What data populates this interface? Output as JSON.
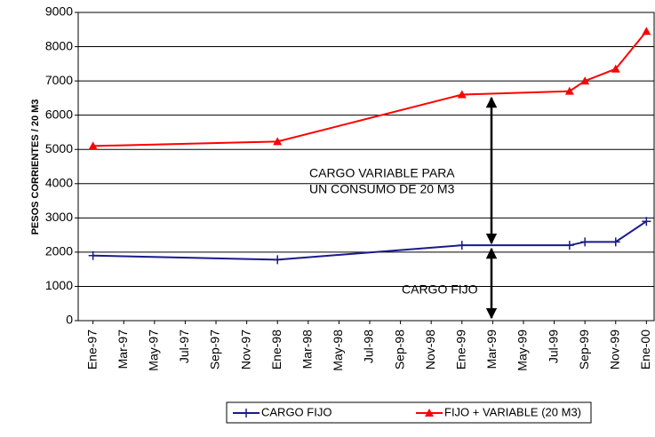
{
  "chart_data": {
    "type": "line",
    "y_label": "PESOS CORRIENTES / 20 M3",
    "categories": [
      "Ene-97",
      null,
      "Mar-97",
      null,
      "May-97",
      null,
      "Jul-97",
      null,
      "Sep-97",
      null,
      "Nov-97",
      null,
      "Ene-98",
      null,
      "Mar-98",
      null,
      "May-98",
      null,
      "Jul-98",
      null,
      "Sep-98",
      null,
      "Nov-98",
      null,
      "Ene-99",
      null,
      "Mar-99",
      null,
      "May-99",
      null,
      "Jul-99",
      null,
      "Sep-99",
      null,
      "Nov-99",
      null,
      "Ene-00"
    ],
    "series": [
      {
        "name": "CARGO FIJO",
        "color": "#1a1a8c",
        "marker": "plus",
        "values": [
          1900,
          null,
          null,
          null,
          null,
          null,
          null,
          null,
          null,
          null,
          null,
          null,
          1780,
          null,
          null,
          null,
          null,
          null,
          null,
          null,
          null,
          null,
          null,
          null,
          2200,
          null,
          null,
          null,
          null,
          null,
          null,
          2200,
          2300,
          null,
          2300,
          null,
          2900
        ]
      },
      {
        "name": "FIJO + VARIABLE (20 M3)",
        "color": "#ff0000",
        "marker": "triangle",
        "values": [
          5100,
          null,
          null,
          null,
          null,
          null,
          null,
          null,
          null,
          null,
          null,
          null,
          5230,
          null,
          null,
          null,
          null,
          null,
          null,
          null,
          null,
          null,
          null,
          null,
          6600,
          null,
          null,
          null,
          null,
          null,
          null,
          6700,
          7000,
          null,
          7350,
          null,
          8450
        ]
      }
    ],
    "span_gaps": true,
    "ylim": [
      0,
      9000
    ],
    "yticks": [
      0,
      1000,
      2000,
      3000,
      4000,
      5000,
      6000,
      7000,
      8000,
      9000
    ],
    "grid": true,
    "legend": "bottom",
    "annotations": [
      "CARGO  VARIABLE PARA",
      "UN CONSUMO DE 20 M3",
      "CARGO FIJO"
    ]
  }
}
